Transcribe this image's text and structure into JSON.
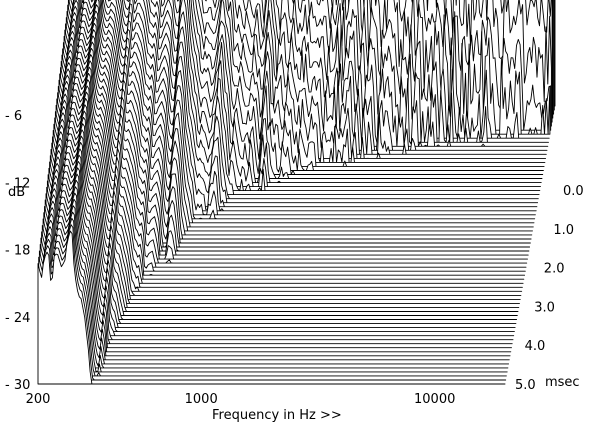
{
  "chart_data": {
    "type": "area",
    "subtype": "waterfall",
    "title": "",
    "xlabel": "Frequency in Hz >>",
    "ylabel": "dB",
    "zlabel": "msec",
    "x_scale": "log",
    "xlim": [
      200,
      20000
    ],
    "x_ticks": [
      {
        "value": 200,
        "label": "200"
      },
      {
        "value": 1000,
        "label": "1000"
      },
      {
        "value": 10000,
        "label": "10000"
      }
    ],
    "y_ticks": [
      {
        "value": -6,
        "label": "- 6"
      },
      {
        "value": -12,
        "label": "- 12"
      },
      {
        "value": -18,
        "label": "- 18"
      },
      {
        "value": -24,
        "label": "- 24"
      },
      {
        "value": -30,
        "label": "- 30"
      }
    ],
    "z_ticks": [
      {
        "value": 0.0,
        "label": "0.0"
      },
      {
        "value": 1.0,
        "label": "1.0"
      },
      {
        "value": 2.0,
        "label": "2.0"
      },
      {
        "value": 3.0,
        "label": "3.0"
      },
      {
        "value": 4.0,
        "label": "4.0"
      },
      {
        "value": 5.0,
        "label": "5.0"
      }
    ],
    "zlim": [
      0,
      5
    ],
    "slice_count": 70,
    "grid": false,
    "legend": "none",
    "line_color": "#000000",
    "fill_color": "#ffffff"
  }
}
